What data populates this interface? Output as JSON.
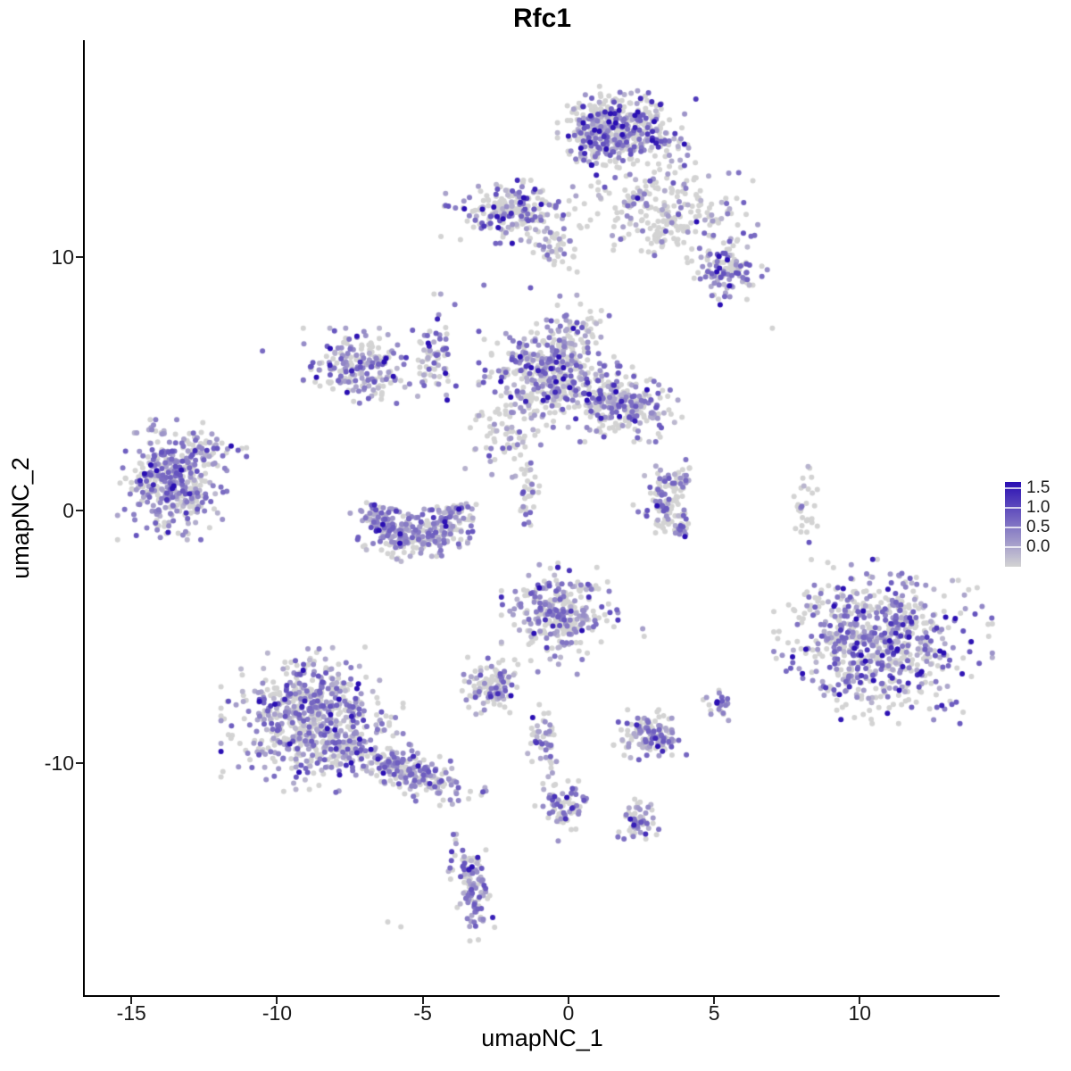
{
  "chart_data": {
    "type": "scatter",
    "title": "Rfc1",
    "xlabel": "umapNC_1",
    "ylabel": "umapNC_2",
    "xlim": [
      -16.6,
      14.8
    ],
    "ylim": [
      -19.2,
      18.6
    ],
    "x_ticks": [
      "-15",
      "-10",
      "-5",
      "0",
      "5",
      "10"
    ],
    "x_tick_values": [
      -15,
      -10,
      -5,
      0,
      5,
      10
    ],
    "y_ticks": [
      "10",
      "0",
      "-10"
    ],
    "y_tick_values": [
      10,
      0,
      -10
    ],
    "grid": false,
    "point_radius": 3,
    "seed": 42,
    "colors": {
      "low": "#d3d3d3",
      "high": "#2a0fb3",
      "vmax": 1.5
    },
    "legend": {
      "position": "right",
      "tick_labels": [
        "1.5",
        "1.0",
        "0.5",
        "0.0"
      ],
      "tick_values": [
        1.5,
        1.0,
        0.5,
        0.0
      ]
    },
    "clusters": [
      {
        "shape": "gauss",
        "cx": 2.0,
        "cy": 14.9,
        "sx": 0.95,
        "sy": 0.75,
        "rot": 0,
        "n": 360,
        "p_mid": 0.4,
        "p_high": 0.07
      },
      {
        "shape": "gauss",
        "cx": 1.0,
        "cy": 15.1,
        "sx": 0.45,
        "sy": 0.55,
        "rot": 0,
        "n": 140,
        "p_mid": 0.55,
        "p_high": 0.08
      },
      {
        "shape": "gauss",
        "cx": 3.4,
        "cy": 11.9,
        "sx": 1.3,
        "sy": 0.9,
        "rot": 0,
        "n": 240,
        "p_mid": 0.28,
        "p_high": 0.03
      },
      {
        "shape": "gauss",
        "cx": 5.45,
        "cy": 9.5,
        "sx": 0.55,
        "sy": 0.55,
        "rot": 0,
        "n": 120,
        "p_mid": 0.45,
        "p_high": 0.05
      },
      {
        "shape": "gauss",
        "cx": -2.0,
        "cy": 11.8,
        "sx": 0.95,
        "sy": 0.5,
        "rot": 0,
        "n": 220,
        "p_mid": 0.35,
        "p_high": 0.05
      },
      {
        "shape": "gauss",
        "cx": -0.3,
        "cy": 10.3,
        "sx": 0.5,
        "sy": 0.35,
        "rot": 0,
        "n": 40,
        "p_mid": 0.3,
        "p_high": 0.02
      },
      {
        "shape": "gauss",
        "cx": -4.6,
        "cy": 6.3,
        "sx": 0.3,
        "sy": 0.9,
        "rot": 0,
        "n": 70,
        "p_mid": 0.5,
        "p_high": 0.07
      },
      {
        "shape": "gauss",
        "cx": -7.1,
        "cy": 5.7,
        "sx": 0.8,
        "sy": 0.6,
        "rot": 0,
        "n": 210,
        "p_mid": 0.55,
        "p_high": 0.04
      },
      {
        "shape": "gauss",
        "cx": -0.7,
        "cy": 5.4,
        "sx": 0.95,
        "sy": 0.85,
        "rot": 0,
        "n": 430,
        "p_mid": 0.45,
        "p_high": 0.05
      },
      {
        "shape": "gauss",
        "cx": 0.4,
        "cy": 7.3,
        "sx": 0.4,
        "sy": 0.5,
        "rot": 0,
        "n": 40,
        "p_mid": 0.4,
        "p_high": 0.03
      },
      {
        "shape": "gauss",
        "cx": 1.9,
        "cy": 4.2,
        "sx": 0.8,
        "sy": 0.6,
        "rot": 0,
        "n": 260,
        "p_mid": 0.5,
        "p_high": 0.03
      },
      {
        "shape": "gauss",
        "cx": -2.3,
        "cy": 2.8,
        "sx": 0.5,
        "sy": 0.6,
        "rot": 0,
        "n": 60,
        "p_mid": 0.3,
        "p_high": 0.02
      },
      {
        "shape": "gauss",
        "cx": -1.35,
        "cy": 0.7,
        "sx": 0.25,
        "sy": 0.75,
        "rot": 0,
        "n": 40,
        "p_mid": 0.3,
        "p_high": 0.02
      },
      {
        "shape": "gauss",
        "cx": -13.6,
        "cy": 1.2,
        "sx": 0.75,
        "sy": 0.95,
        "rot": 0,
        "n": 400,
        "p_mid": 0.6,
        "p_high": 0.03
      },
      {
        "shape": "gauss",
        "cx": -12.3,
        "cy": 2.4,
        "sx": 0.5,
        "sy": 0.3,
        "rot": 0,
        "n": 40,
        "p_mid": 0.5,
        "p_high": 0.02
      },
      {
        "shape": "arc",
        "cx": -5.25,
        "cy": 0.0,
        "r": 1.3,
        "a0": 170,
        "a1": 370,
        "jr": 0.4,
        "n": 320,
        "p_mid": 0.6,
        "p_high": 0.05
      },
      {
        "shape": "arc",
        "cx": 3.9,
        "cy": 0.3,
        "r": 0.9,
        "a0": 75,
        "a1": 285,
        "jr": 0.32,
        "n": 140,
        "p_mid": 0.4,
        "p_high": 0.02
      },
      {
        "shape": "gauss",
        "cx": 8.1,
        "cy": 0.3,
        "sx": 0.18,
        "sy": 0.7,
        "rot": 0,
        "n": 30,
        "p_mid": 0.12,
        "p_high": 0
      },
      {
        "shape": "gauss",
        "cx": 10.8,
        "cy": -5.2,
        "sx": 1.5,
        "sy": 1.3,
        "rot": 0,
        "n": 720,
        "p_mid": 0.5,
        "p_high": 0.07
      },
      {
        "shape": "gauss",
        "cx": -0.3,
        "cy": -4.1,
        "sx": 0.8,
        "sy": 0.8,
        "rot": 0,
        "n": 300,
        "p_mid": 0.45,
        "p_high": 0.05
      },
      {
        "shape": "gauss",
        "cx": -2.7,
        "cy": -7.0,
        "sx": 0.42,
        "sy": 0.48,
        "rot": 0,
        "n": 110,
        "p_mid": 0.5,
        "p_high": 0.03
      },
      {
        "shape": "gauss",
        "cx": 5.2,
        "cy": -7.7,
        "sx": 0.28,
        "sy": 0.25,
        "rot": 0,
        "n": 25,
        "p_mid": 0.5,
        "p_high": 0.02
      },
      {
        "shape": "gauss",
        "cx": -8.8,
        "cy": -8.3,
        "sx": 1.25,
        "sy": 1.15,
        "rot": 0,
        "n": 680,
        "p_mid": 0.55,
        "p_high": 0.04
      },
      {
        "shape": "gauss",
        "cx": -5.6,
        "cy": -10.3,
        "sx": 1.15,
        "sy": 0.4,
        "rot": -22,
        "n": 230,
        "p_mid": 0.5,
        "p_high": 0.03
      },
      {
        "shape": "gauss",
        "cx": 2.8,
        "cy": -8.9,
        "sx": 0.5,
        "sy": 0.4,
        "rot": 0,
        "n": 130,
        "p_mid": 0.55,
        "p_high": 0.03
      },
      {
        "shape": "gauss",
        "cx": -0.8,
        "cy": -9.1,
        "sx": 0.25,
        "sy": 0.55,
        "rot": 0,
        "n": 45,
        "p_mid": 0.5,
        "p_high": 0.04
      },
      {
        "shape": "gauss",
        "cx": -0.15,
        "cy": -11.6,
        "sx": 0.4,
        "sy": 0.42,
        "rot": 0,
        "n": 70,
        "p_mid": 0.5,
        "p_high": 0.04
      },
      {
        "shape": "gauss",
        "cx": 2.4,
        "cy": -12.4,
        "sx": 0.28,
        "sy": 0.38,
        "rot": 0,
        "n": 60,
        "p_mid": 0.55,
        "p_high": 0.04
      },
      {
        "shape": "gauss",
        "cx": -3.3,
        "cy": -14.9,
        "sx": 0.3,
        "sy": 0.85,
        "rot": 8,
        "n": 115,
        "p_mid": 0.55,
        "p_high": 0.05
      }
    ],
    "singles": [
      [
        7.0,
        7.2,
        0
      ],
      [
        -10.5,
        6.3,
        0.8
      ],
      [
        -2.9,
        8.9,
        0.7
      ],
      [
        -1.3,
        8.8,
        0.9
      ],
      [
        6.1,
        11.7,
        0
      ],
      [
        6.5,
        11.3,
        0.4
      ],
      [
        -6.2,
        -16.3,
        0
      ],
      [
        -5.75,
        -16.5,
        0
      ],
      [
        -0.35,
        -13.1,
        0.5
      ],
      [
        -1.05,
        -6.4,
        0.6
      ],
      [
        -1.0,
        -7.7,
        0
      ],
      [
        4.0,
        -1.05,
        1.6
      ],
      [
        -0.55,
        -10.4,
        0.4
      ],
      [
        -0.5,
        -10.9,
        0
      ],
      [
        0.3,
        -6.5,
        0.5
      ],
      [
        2.6,
        -5.0,
        0
      ],
      [
        2.55,
        -4.7,
        0.4
      ],
      [
        9.3,
        -7.3,
        1.7
      ]
    ]
  }
}
